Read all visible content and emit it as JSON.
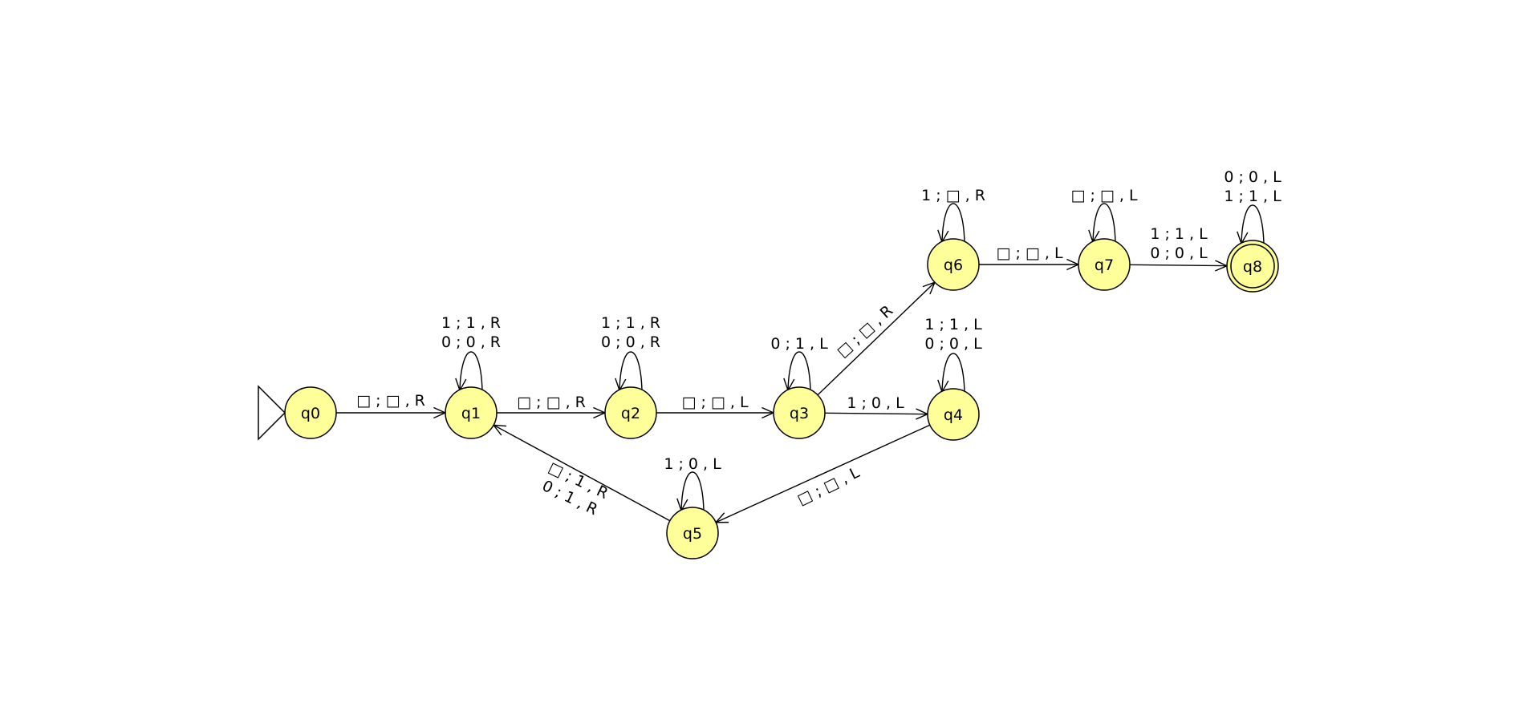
{
  "diagram": {
    "type": "turing-machine",
    "initial_state": "q0",
    "accepting_states": [
      "q8"
    ],
    "state_color": "#ffff99",
    "states": [
      {
        "id": "q0",
        "label": "q0"
      },
      {
        "id": "q1",
        "label": "q1"
      },
      {
        "id": "q2",
        "label": "q2"
      },
      {
        "id": "q3",
        "label": "q3"
      },
      {
        "id": "q4",
        "label": "q4"
      },
      {
        "id": "q5",
        "label": "q5"
      },
      {
        "id": "q6",
        "label": "q6"
      },
      {
        "id": "q7",
        "label": "q7"
      },
      {
        "id": "q8",
        "label": "q8"
      }
    ],
    "transitions": [
      {
        "from": "q0",
        "to": "q1",
        "labels": [
          "□ ; □ , R"
        ]
      },
      {
        "from": "q1",
        "to": "q1",
        "labels": [
          "1 ; 1 , R",
          "0 ; 0 , R"
        ]
      },
      {
        "from": "q1",
        "to": "q2",
        "labels": [
          "□ ; □ , R"
        ]
      },
      {
        "from": "q2",
        "to": "q2",
        "labels": [
          "1 ; 1 , R",
          "0 ; 0 , R"
        ]
      },
      {
        "from": "q2",
        "to": "q3",
        "labels": [
          "□ ; □ , L"
        ]
      },
      {
        "from": "q3",
        "to": "q3",
        "labels": [
          "0 ; 1 , L"
        ]
      },
      {
        "from": "q3",
        "to": "q4",
        "labels": [
          "1 ; 0 , L"
        ]
      },
      {
        "from": "q3",
        "to": "q6",
        "labels": [
          "□ ; □ , R"
        ]
      },
      {
        "from": "q4",
        "to": "q4",
        "labels": [
          "1 ; 1 , L",
          "0 ; 0 , L"
        ]
      },
      {
        "from": "q4",
        "to": "q5",
        "labels": [
          "□ ; □ , L"
        ]
      },
      {
        "from": "q5",
        "to": "q5",
        "labels": [
          "1 ; 0 , L"
        ]
      },
      {
        "from": "q5",
        "to": "q1",
        "labels": [
          "□ ; 1 , R",
          "0 ; 1 , R"
        ]
      },
      {
        "from": "q6",
        "to": "q6",
        "labels": [
          "1 ; □ , R"
        ]
      },
      {
        "from": "q6",
        "to": "q7",
        "labels": [
          "□ ; □ , L"
        ]
      },
      {
        "from": "q7",
        "to": "q7",
        "labels": [
          "□ ; □ , L"
        ]
      },
      {
        "from": "q7",
        "to": "q8",
        "labels": [
          "1 ; 1 , L",
          "0 ; 0 , L"
        ]
      },
      {
        "from": "q8",
        "to": "q8",
        "labels": [
          "0 ; 0 , L",
          "1 ; 1 , L"
        ]
      }
    ]
  }
}
